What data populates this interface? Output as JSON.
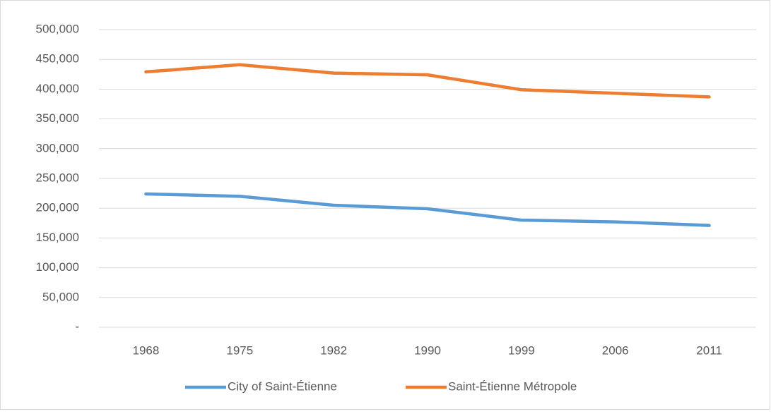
{
  "chart_data": {
    "type": "line",
    "categories": [
      "1968",
      "1975",
      "1982",
      "1990",
      "1999",
      "2006",
      "2011"
    ],
    "series": [
      {
        "name": "City of Saint-Étienne",
        "color": "#5b9bd5",
        "values": [
          224000,
          220000,
          205000,
          199000,
          180000,
          177000,
          171000
        ]
      },
      {
        "name": "Saint-Étienne Métropole",
        "color": "#ed7d31",
        "values": [
          429000,
          441000,
          427000,
          424000,
          399000,
          393000,
          387000
        ]
      }
    ],
    "ylim": [
      0,
      500000
    ],
    "yticks": [
      {
        "value": 0,
        "label": "-"
      },
      {
        "value": 50000,
        "label": "50,000"
      },
      {
        "value": 100000,
        "label": "100,000"
      },
      {
        "value": 150000,
        "label": "150,000"
      },
      {
        "value": 200000,
        "label": "200,000"
      },
      {
        "value": 250000,
        "label": "250,000"
      },
      {
        "value": 300000,
        "label": "300,000"
      },
      {
        "value": 350000,
        "label": "350,000"
      },
      {
        "value": 400000,
        "label": "400,000"
      },
      {
        "value": 450000,
        "label": "450,000"
      },
      {
        "value": 500000,
        "label": "500,000"
      }
    ],
    "grid": true,
    "legend": "bottom"
  }
}
